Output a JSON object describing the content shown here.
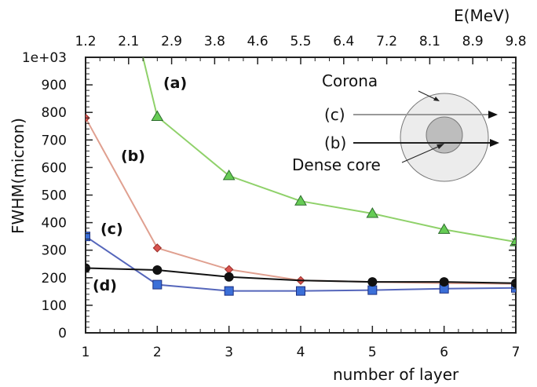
{
  "chart_data": {
    "type": "line",
    "xlabel": "number of layer",
    "ylabel": "FWHM(micron)",
    "x2label": "E(MeV)",
    "x": [
      1,
      2,
      3,
      4,
      5,
      6,
      7
    ],
    "xlim": [
      1,
      7
    ],
    "ylim": [
      0,
      1000
    ],
    "yticks": [
      0,
      100,
      200,
      300,
      400,
      500,
      600,
      700,
      800,
      900,
      1000
    ],
    "ytick_labels": [
      "0",
      "100",
      "200",
      "300",
      "400",
      "500",
      "600",
      "700",
      "800",
      "900",
      "1e+03"
    ],
    "xticks": [
      1,
      2,
      3,
      4,
      5,
      6,
      7
    ],
    "xtick_labels": [
      "1",
      "2",
      "3",
      "4",
      "5",
      "6",
      "7"
    ],
    "top_ticks": [
      "1.2",
      "2.1",
      "2.9",
      "3.8",
      "4.6",
      "5.5",
      "6.4",
      "7.2",
      "8.1",
      "8.9",
      "9.8"
    ],
    "grid": false,
    "series": [
      {
        "name": "(a)",
        "marker": "triangle",
        "color": "#8fd16a",
        "marker_color": "#66cc55",
        "x": [
          1.8,
          2,
          3,
          4,
          5,
          6,
          7
        ],
        "values": [
          1000,
          785,
          570,
          478,
          433,
          375,
          330
        ],
        "marked": [
          false,
          true,
          true,
          true,
          true,
          true,
          true
        ]
      },
      {
        "name": "(b)",
        "marker": "diamond",
        "color": "#e0a090",
        "marker_color": "#d9534f",
        "x": [
          1,
          2,
          3,
          4,
          5,
          6,
          7
        ],
        "values": [
          780,
          308,
          230,
          190,
          185,
          180,
          178
        ],
        "marked": [
          true,
          true,
          true,
          true,
          false,
          false,
          false
        ]
      },
      {
        "name": "(c)",
        "marker": "square",
        "color": "#5566bb",
        "marker_color": "#3b6fd8",
        "x": [
          1,
          2,
          3,
          4,
          5,
          6,
          7
        ],
        "values": [
          350,
          175,
          152,
          152,
          155,
          160,
          163
        ],
        "marked": [
          true,
          true,
          true,
          true,
          true,
          true,
          true
        ]
      },
      {
        "name": "(d)",
        "marker": "circle",
        "color": "#111111",
        "marker_color": "#111111",
        "x": [
          1,
          2,
          3,
          4,
          5,
          6,
          7
        ],
        "values": [
          235,
          228,
          203,
          190,
          185,
          185,
          180
        ],
        "marked": [
          true,
          true,
          true,
          false,
          true,
          true,
          true
        ]
      }
    ],
    "inset": {
      "corona_label": "Corona",
      "core_label": "Dense core",
      "ray_c_label": "(c)",
      "ray_b_label": "(b)"
    },
    "colors": {
      "corona_fill": "#ececec",
      "core_fill": "#bdbdbd",
      "ray_c": "#999999",
      "ray_b": "#222222"
    }
  }
}
